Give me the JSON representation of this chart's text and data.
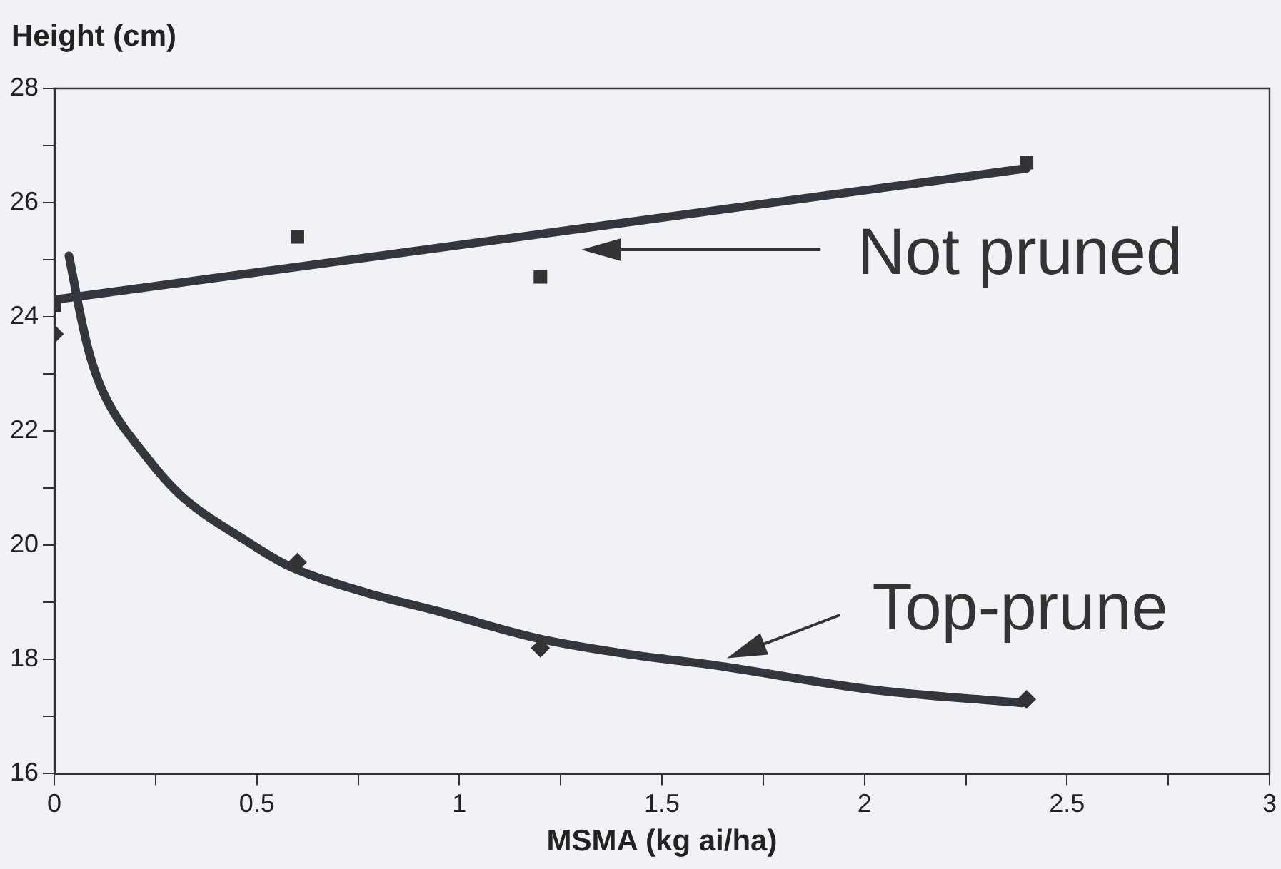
{
  "chart_data": {
    "type": "scatter",
    "ylabel": "Height (cm)",
    "xlabel": "MSMA (kg ai/ha)",
    "xlim": [
      0,
      3
    ],
    "ylim": [
      16,
      28
    ],
    "xticks": [
      0,
      {
        "value": 0.25,
        "label": null
      },
      0.5,
      {
        "value": 0.75,
        "label": null
      },
      1,
      {
        "value": 1.25,
        "label": null
      },
      1.5,
      {
        "value": 1.75,
        "label": null
      },
      2,
      {
        "value": 2.25,
        "label": null
      },
      2.5,
      {
        "value": 2.75,
        "label": null
      },
      3
    ],
    "yticks": [
      16,
      {
        "value": 17,
        "label": null
      },
      18,
      {
        "value": 19,
        "label": null
      },
      20,
      {
        "value": 21,
        "label": null
      },
      22,
      {
        "value": 23,
        "label": null
      },
      24,
      {
        "value": 25,
        "label": null
      },
      26,
      {
        "value": 27,
        "label": null
      },
      28
    ],
    "grid": false,
    "legend": false,
    "series": [
      {
        "type": "scatter",
        "marker": "square",
        "color": "#333333",
        "x": [
          0,
          0.6,
          1.2,
          2.4
        ],
        "values": [
          24.2,
          25.4,
          24.7,
          26.7
        ]
      },
      {
        "type": "scatter",
        "marker": "diamond",
        "color": "#333333",
        "x": [
          0,
          0.6,
          1.2,
          2.4
        ],
        "values": [
          23.7,
          19.7,
          18.2,
          17.3
        ]
      },
      {
        "type": "line",
        "marker": "none",
        "color": "#33363d",
        "x": [
          0,
          2.4
        ],
        "values": [
          24.3,
          26.6
        ]
      },
      {
        "type": "line",
        "marker": "none",
        "color": "#33363d",
        "x": [
          0.036,
          0.085,
          0.133,
          0.216,
          0.324,
          0.48,
          0.59,
          0.77,
          0.95,
          1.2,
          1.43,
          1.63,
          2.02,
          2.39
        ],
        "values": [
          25.07,
          23.4,
          22.5,
          21.65,
          20.8,
          20.05,
          19.6,
          19.17,
          18.84,
          18.36,
          18.08,
          17.9,
          17.47,
          17.24
        ]
      }
    ],
    "annotations": [
      "Not pruned",
      "Top-prune"
    ]
  }
}
